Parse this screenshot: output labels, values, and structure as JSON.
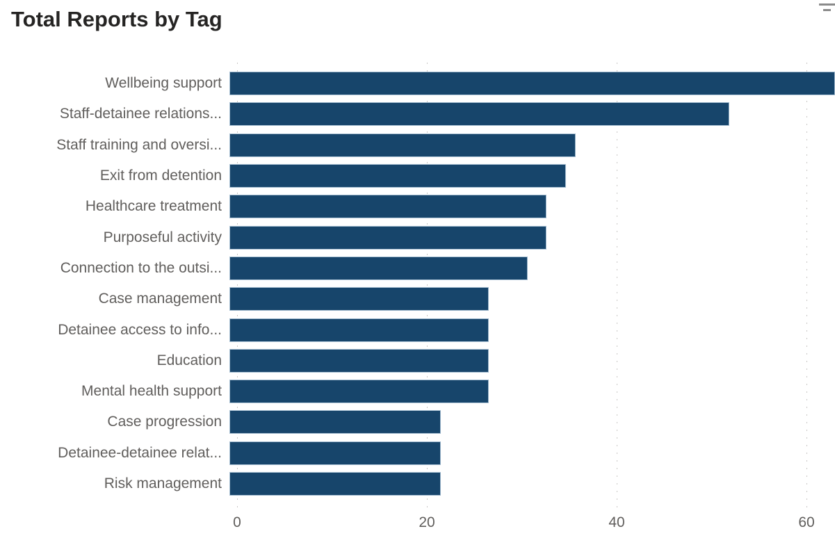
{
  "header": {
    "corner_icon": "lines-icon"
  },
  "chart_data": {
    "type": "bar",
    "orientation": "horizontal",
    "title": "Total Reports by Tag",
    "categories": [
      "Wellbeing support",
      "Staff-detainee relations...",
      "Staff training and oversi...",
      "Exit from detention",
      "Healthcare treatment",
      "Purposeful activity",
      "Connection to the outsi...",
      "Case management",
      "Detainee access to info...",
      "Education",
      "Mental health support",
      "Case progression",
      "Detainee-detainee relat...",
      "Risk management"
    ],
    "values": [
      63,
      52,
      36,
      35,
      33,
      33,
      31,
      27,
      27,
      27,
      27,
      22,
      22,
      22
    ],
    "xlabel": "",
    "ylabel": "",
    "xlim": [
      0,
      63
    ],
    "x_ticks": [
      0,
      20,
      40,
      60
    ],
    "grid": "dotted-vertical",
    "legend": "none",
    "colors": {
      "bar": "#17456B",
      "bar_border": "#A7BFD2",
      "title": "#252423",
      "axis_label": "#605E5C",
      "gridline": "#C8C6C4",
      "background": "#FFFFFF"
    }
  }
}
